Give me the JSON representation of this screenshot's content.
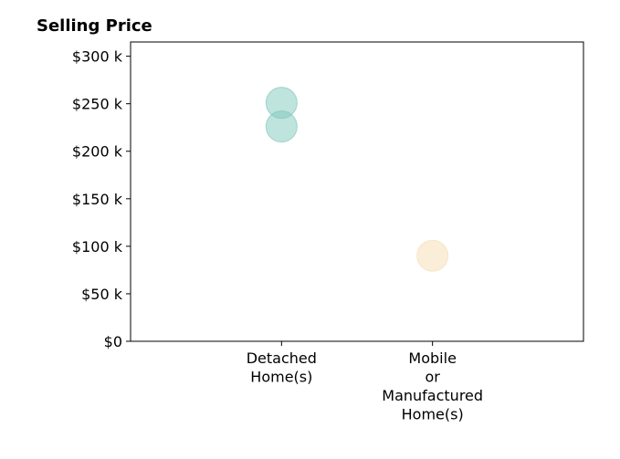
{
  "chart_data": {
    "type": "scatter",
    "title": "Selling Price",
    "xlabel": "",
    "ylabel": "",
    "categories": [
      [
        "Detached",
        "Home(s)"
      ],
      [
        "Mobile",
        "or",
        "Manufactured",
        "Home(s)"
      ]
    ],
    "yticks": [
      {
        "value": 0,
        "label": "$0"
      },
      {
        "value": 50000,
        "label": "$50 k"
      },
      {
        "value": 100000,
        "label": "$100 k"
      },
      {
        "value": 150000,
        "label": "$150 k"
      },
      {
        "value": 200000,
        "label": "$200 k"
      },
      {
        "value": 250000,
        "label": "$250 k"
      },
      {
        "value": 300000,
        "label": "$300 k"
      }
    ],
    "ylim": [
      0,
      315000
    ],
    "xlim": [
      -1,
      2
    ],
    "grid": false,
    "points": [
      {
        "category": 0,
        "value": 251000,
        "color": "#80c8bc"
      },
      {
        "category": 0,
        "value": 226000,
        "color": "#80c8bc"
      },
      {
        "category": 1,
        "value": 90000,
        "color": "#f5deb3"
      }
    ],
    "colors": {
      "detached": "#80c8bc",
      "mobile": "#f5deb3"
    }
  }
}
